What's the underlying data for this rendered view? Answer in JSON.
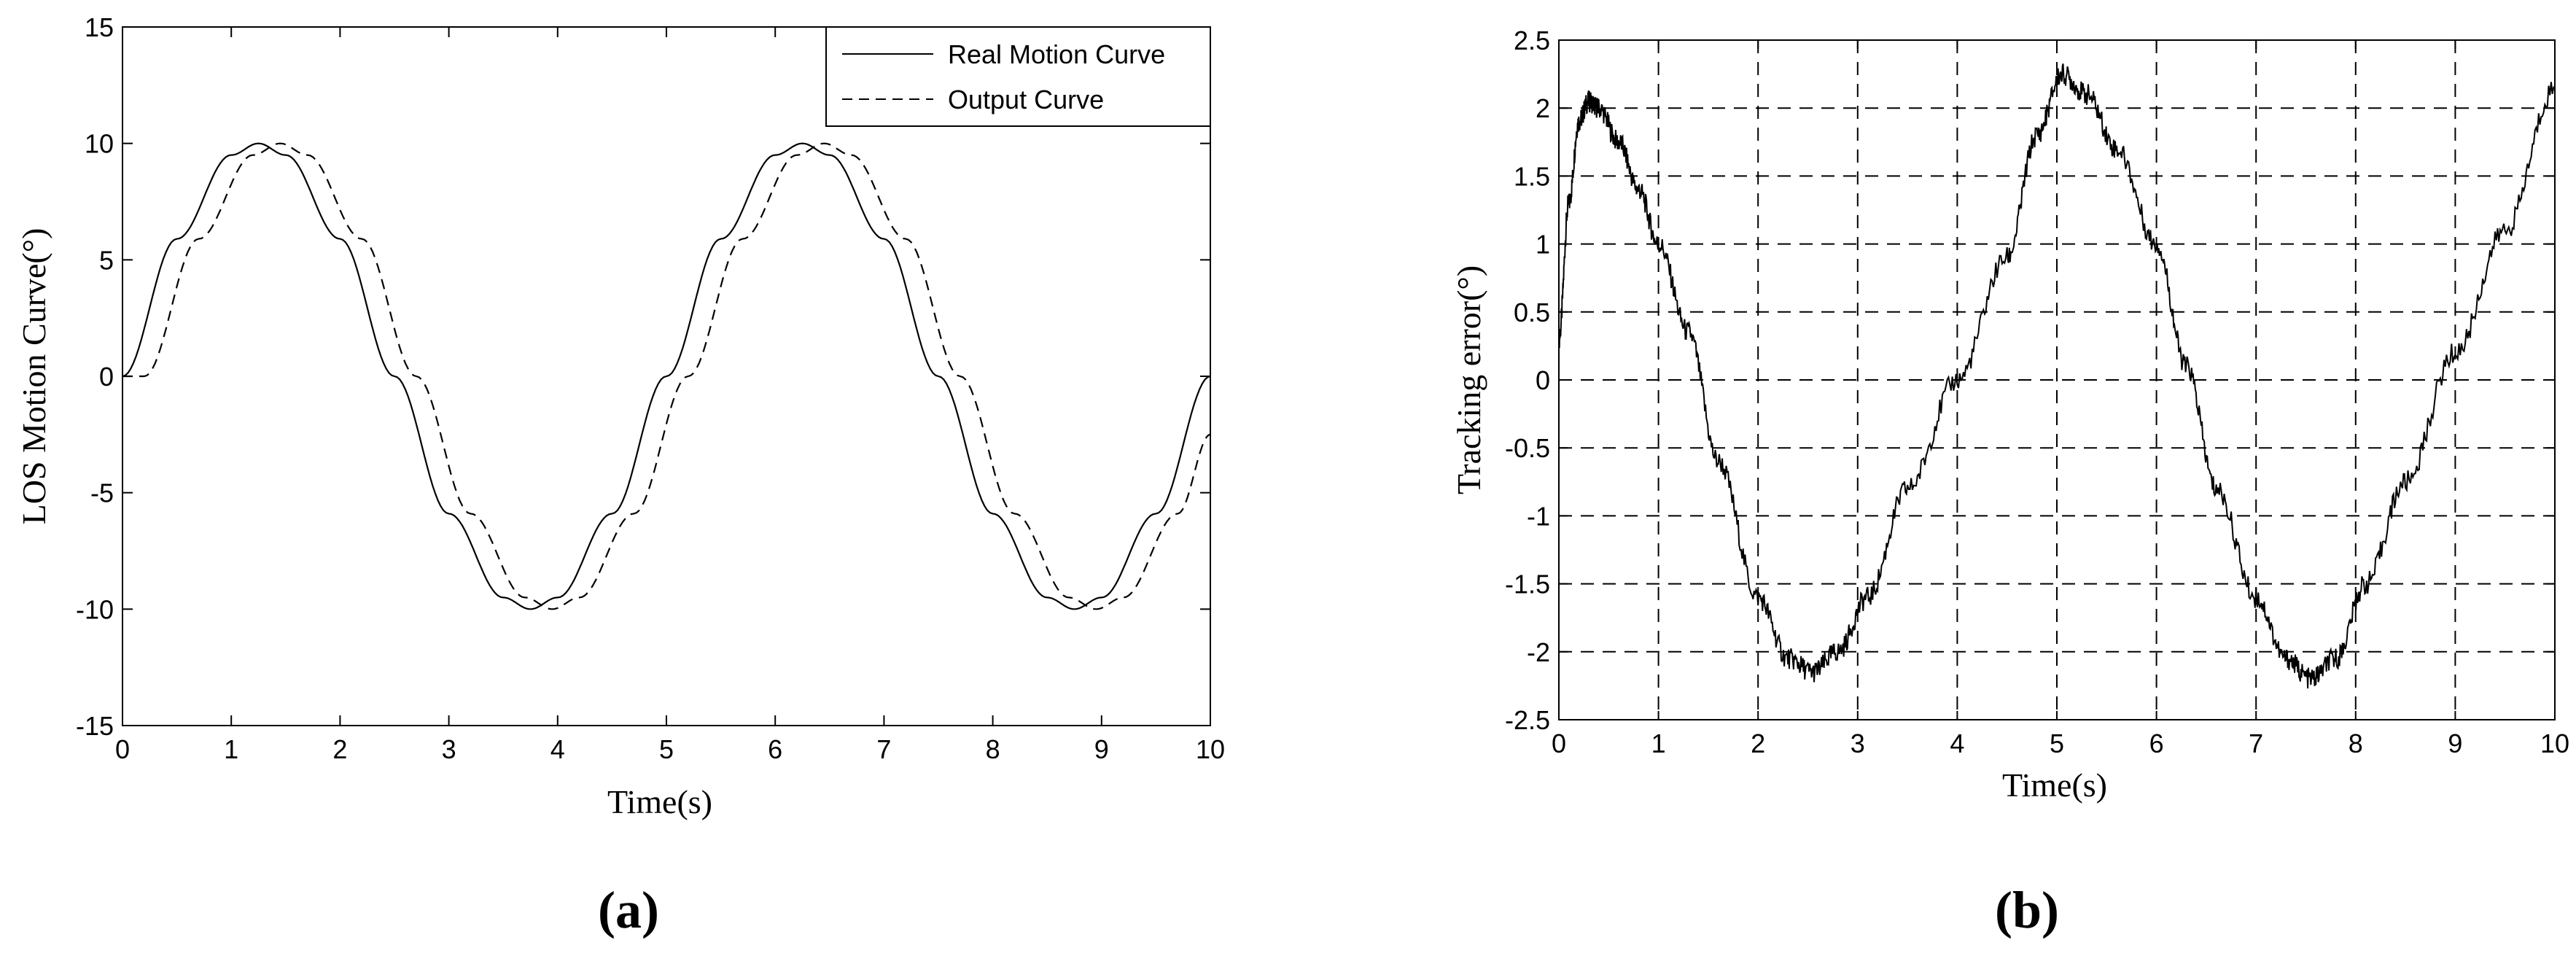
{
  "chart_data": [
    {
      "panel": "(a)",
      "caption": "(a)",
      "type": "line",
      "title": "",
      "xlabel": "Time(s)",
      "ylabel": "LOS Motion Curve(°)",
      "xlim": [
        0,
        10
      ],
      "ylim": [
        -15,
        15
      ],
      "xticks": [
        "0",
        "1",
        "2",
        "3",
        "4",
        "5",
        "6",
        "7",
        "8",
        "9",
        "10"
      ],
      "yticks": [
        "-15",
        "-10",
        "-5",
        "0",
        "5",
        "10",
        "15"
      ],
      "grid": false,
      "legend_position": "top-right",
      "series": [
        {
          "name": "Real Motion Curve",
          "style": "solid",
          "x": [
            0,
            0.5,
            1,
            1.25,
            1.5,
            2,
            2.5,
            3,
            3.5,
            3.75,
            4,
            4.5,
            5,
            5.5,
            6,
            6.25,
            6.5,
            7,
            7.5,
            8,
            8.5,
            8.75,
            9,
            9.5,
            10
          ],
          "y": [
            0,
            5.9,
            9.5,
            10,
            9.5,
            5.9,
            0,
            -5.9,
            -9.5,
            -10,
            -9.5,
            -5.9,
            0,
            5.9,
            9.5,
            10,
            9.5,
            5.9,
            0,
            -5.9,
            -9.5,
            -10,
            -9.5,
            -5.9,
            0
          ]
        },
        {
          "name": "Output Curve",
          "style": "dashed",
          "x": [
            0,
            0.2,
            0.7,
            1.2,
            1.45,
            1.7,
            2.2,
            2.7,
            3.2,
            3.7,
            3.95,
            4.2,
            4.7,
            5.2,
            5.7,
            6.2,
            6.45,
            6.7,
            7.2,
            7.7,
            8.2,
            8.7,
            8.95,
            9.2,
            9.7,
            10
          ],
          "y": [
            0,
            0,
            5.9,
            9.5,
            10,
            9.5,
            5.9,
            0,
            -5.9,
            -9.5,
            -10,
            -9.5,
            -5.9,
            0,
            5.9,
            9.5,
            10,
            9.5,
            5.9,
            0,
            -5.9,
            -9.5,
            -10,
            -9.5,
            -5.9,
            -2.5
          ]
        }
      ]
    },
    {
      "panel": "(b)",
      "caption": "(b)",
      "type": "line",
      "title": "",
      "xlabel": "Time(s)",
      "ylabel": "Tracking error(°)",
      "xlim": [
        0,
        10
      ],
      "ylim": [
        -2.5,
        2.5
      ],
      "xticks": [
        "0",
        "1",
        "2",
        "3",
        "4",
        "5",
        "6",
        "7",
        "8",
        "9",
        "10"
      ],
      "yticks": [
        "-2.5",
        "-2",
        "-1.5",
        "-1",
        "-0.5",
        "0",
        "0.5",
        "1",
        "1.5",
        "2",
        "2.5"
      ],
      "grid": true,
      "grid_style": "dashed",
      "series": [
        {
          "style": "solid-noisy",
          "x": [
            0,
            0.1,
            0.2,
            0.3,
            0.4,
            0.6,
            0.8,
            1,
            1.3,
            1.6,
            2,
            2.3,
            2.55,
            2.8,
            3.1,
            3.5,
            4,
            4.5,
            4.8,
            5.05,
            5.3,
            5.6,
            6,
            6.3,
            6.6,
            7,
            7.3,
            7.55,
            7.8,
            8.1,
            8.5,
            9,
            9.5,
            10
          ],
          "y": [
            0.3,
            1.3,
            1.9,
            2.05,
            2.0,
            1.75,
            1.4,
            1.0,
            0.35,
            -0.6,
            -1.6,
            -2.05,
            -2.15,
            -2.0,
            -1.6,
            -0.8,
            0.0,
            0.9,
            1.8,
            2.25,
            2.1,
            1.7,
            1.0,
            0.1,
            -0.8,
            -1.6,
            -2.05,
            -2.2,
            -2.05,
            -1.5,
            -0.75,
            0.2,
            1.1,
            2.15
          ]
        }
      ]
    }
  ]
}
